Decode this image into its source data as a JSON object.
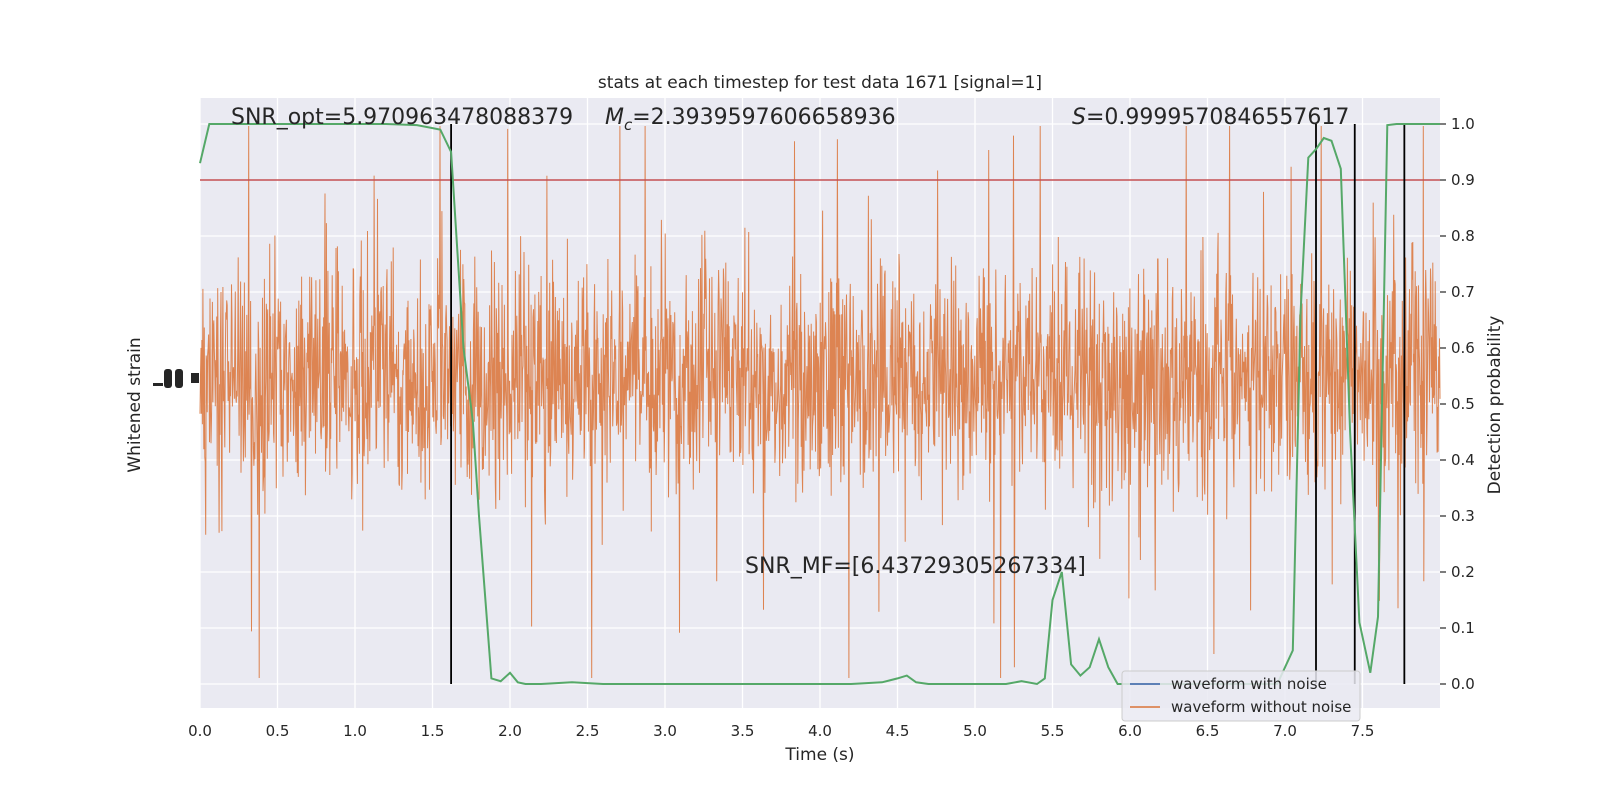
{
  "chart_data": {
    "type": "line",
    "title": "stats at each timestep for test data 1671 [signal=1]",
    "xlabel": "Time (s)",
    "ylabel_left": "Whitened strain",
    "ylabel_right": "Detection probability",
    "xlim": [
      0.0,
      8.0
    ],
    "ylim_right": [
      -0.048,
      1.0
    ],
    "x_ticks": [
      "0.0",
      "0.5",
      "1.0",
      "1.5",
      "2.0",
      "2.5",
      "3.0",
      "3.5",
      "4.0",
      "4.5",
      "5.0",
      "5.5",
      "6.0",
      "6.5",
      "7.0",
      "7.5"
    ],
    "x_tick_values": [
      0.0,
      0.5,
      1.0,
      1.5,
      2.0,
      2.5,
      3.0,
      3.5,
      4.0,
      4.5,
      5.0,
      5.5,
      6.0,
      6.5,
      7.0,
      7.5
    ],
    "y_ticks_right": [
      "0.0",
      "0.1",
      "0.2",
      "0.3",
      "0.4",
      "0.5",
      "0.6",
      "0.7",
      "0.8",
      "0.9",
      "1.0"
    ],
    "y_tick_values_right": [
      0.0,
      0.1,
      0.2,
      0.3,
      0.4,
      0.5,
      0.6,
      0.7,
      0.8,
      0.9,
      1.0
    ],
    "annotations": {
      "snr_opt": "SNR_opt=5.970963478088379",
      "mc_symbol": "M",
      "mc_subscript": "c",
      "mc_value": "=2.3939597606658936",
      "s_symbol": "S",
      "s_value": "=0.9999570846557617",
      "snr_mf": "SNR_MF=[6.43729305267334]"
    },
    "threshold": 0.9,
    "vertical_lines": [
      1.62,
      7.2,
      7.45,
      7.77
    ],
    "grid": true,
    "legend_position": "lower-right",
    "series": [
      {
        "name": "waveform with noise",
        "color": "#4c72b0",
        "kind": "strain"
      },
      {
        "name": "waveform without noise",
        "color": "#dd8452",
        "kind": "strain"
      },
      {
        "name": "",
        "color": "#55a868",
        "kind": "probability",
        "x": [
          0.0,
          0.06,
          0.2,
          0.4,
          0.6,
          0.8,
          1.0,
          1.2,
          1.4,
          1.55,
          1.62,
          1.7,
          1.76,
          1.8,
          1.88,
          1.94,
          2.0,
          2.05,
          2.1,
          2.2,
          2.4,
          2.6,
          2.8,
          3.0,
          3.2,
          3.4,
          3.6,
          3.8,
          4.0,
          4.2,
          4.4,
          4.5,
          4.56,
          4.62,
          4.7,
          5.0,
          5.2,
          5.3,
          5.4,
          5.45,
          5.5,
          5.56,
          5.62,
          5.68,
          5.74,
          5.8,
          5.86,
          5.92,
          6.0,
          6.1,
          6.2,
          6.4,
          6.6,
          6.8,
          6.95,
          7.05,
          7.1,
          7.15,
          7.2,
          7.25,
          7.3,
          7.36,
          7.42,
          7.48,
          7.55,
          7.6,
          7.66,
          7.72,
          7.78,
          7.85,
          7.95,
          8.0
        ],
        "y": [
          0.93,
          1.0,
          1.0,
          1.0,
          1.0,
          1.0,
          1.0,
          1.0,
          0.998,
          0.99,
          0.95,
          0.6,
          0.47,
          0.3,
          0.01,
          0.005,
          0.02,
          0.003,
          0.0,
          0.0,
          0.003,
          0.0,
          0.0,
          0.0,
          0.0,
          0.0,
          0.0,
          0.0,
          0.0,
          0.0,
          0.003,
          0.01,
          0.015,
          0.003,
          0.0,
          0.0,
          0.0,
          0.005,
          0.0,
          0.01,
          0.15,
          0.2,
          0.035,
          0.015,
          0.03,
          0.08,
          0.03,
          0.0,
          0.0,
          0.0,
          0.0,
          0.0,
          0.0,
          0.0,
          0.0,
          0.06,
          0.66,
          0.94,
          0.955,
          0.975,
          0.97,
          0.92,
          0.45,
          0.11,
          0.02,
          0.12,
          0.998,
          1.0,
          1.0,
          1.0,
          1.0,
          1.0
        ]
      }
    ]
  }
}
